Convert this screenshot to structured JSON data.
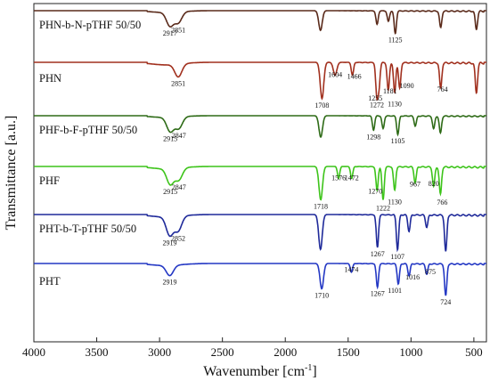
{
  "chart_data": {
    "type": "line",
    "title": "",
    "xlabel": "Wavenumber [cm",
    "xlabel_sup": "-1",
    "xlabel_close": "]",
    "ylabel": "Transmittance [a.u.]",
    "xlim": [
      4000,
      400
    ],
    "x_reversed": true,
    "xticks": [
      4000,
      3500,
      3000,
      2500,
      2000,
      1500,
      1000,
      500
    ],
    "y_ticks_shown": false,
    "grid": false,
    "legend": "none",
    "series": [
      {
        "name": "PHN-b-N-pTHF 50/50",
        "color": "#5a2a1a",
        "peaks": [
          {
            "wavenumber": 2917,
            "depth": 0.45,
            "label": "2917"
          },
          {
            "wavenumber": 2851,
            "depth": 0.35,
            "label": "2851"
          },
          {
            "wavenumber": 1720,
            "depth": 0.65,
            "label": ""
          },
          {
            "wavenumber": 1270,
            "depth": 0.45,
            "label": ""
          },
          {
            "wavenumber": 1180,
            "depth": 0.35,
            "label": ""
          },
          {
            "wavenumber": 1125,
            "depth": 0.75,
            "label": "1125"
          },
          {
            "wavenumber": 764,
            "depth": 0.55,
            "label": ""
          },
          {
            "wavenumber": 480,
            "depth": 0.6,
            "label": ""
          }
        ]
      },
      {
        "name": "PHN",
        "color": "#a1301e",
        "peaks": [
          {
            "wavenumber": 2851,
            "depth": 0.3,
            "label": "2851"
          },
          {
            "wavenumber": 1708,
            "depth": 0.85,
            "label": "1708"
          },
          {
            "wavenumber": 1604,
            "depth": 0.3,
            "label": "1604"
          },
          {
            "wavenumber": 1466,
            "depth": 0.3,
            "label": "1466"
          },
          {
            "wavenumber": 1272,
            "depth": 0.75,
            "label": "1272"
          },
          {
            "wavenumber": 1255,
            "depth": 0.55,
            "label": "1255"
          },
          {
            "wavenumber": 1181,
            "depth": 0.65,
            "label": "1181"
          },
          {
            "wavenumber": 1130,
            "depth": 0.7,
            "label": "1130"
          },
          {
            "wavenumber": 1090,
            "depth": 0.6,
            "label": "1090"
          },
          {
            "wavenumber": 764,
            "depth": 0.6,
            "label": "764"
          },
          {
            "wavenumber": 480,
            "depth": 0.7,
            "label": ""
          }
        ]
      },
      {
        "name": "PHF-b-F-pTHF 50/50",
        "color": "#2e6b17",
        "peaks": [
          {
            "wavenumber": 2915,
            "depth": 0.5,
            "label": "2915"
          },
          {
            "wavenumber": 2847,
            "depth": 0.4,
            "label": "2847"
          },
          {
            "wavenumber": 1718,
            "depth": 0.75,
            "label": ""
          },
          {
            "wavenumber": 1298,
            "depth": 0.5,
            "label": "1298"
          },
          {
            "wavenumber": 1222,
            "depth": 0.45,
            "label": ""
          },
          {
            "wavenumber": 1105,
            "depth": 0.65,
            "label": "1105"
          },
          {
            "wavenumber": 966,
            "depth": 0.35,
            "label": ""
          },
          {
            "wavenumber": 820,
            "depth": 0.45,
            "label": ""
          },
          {
            "wavenumber": 766,
            "depth": 0.6,
            "label": ""
          }
        ]
      },
      {
        "name": "PHF",
        "color": "#3dc41a",
        "peaks": [
          {
            "wavenumber": 2915,
            "depth": 0.4,
            "label": "2915"
          },
          {
            "wavenumber": 2847,
            "depth": 0.3,
            "label": "2847"
          },
          {
            "wavenumber": 1718,
            "depth": 0.85,
            "label": "1718"
          },
          {
            "wavenumber": 1576,
            "depth": 0.3,
            "label": "1576"
          },
          {
            "wavenumber": 1472,
            "depth": 0.3,
            "label": "1472"
          },
          {
            "wavenumber": 1270,
            "depth": 0.6,
            "label": "1270"
          },
          {
            "wavenumber": 1222,
            "depth": 0.85,
            "label": "1222"
          },
          {
            "wavenumber": 1130,
            "depth": 0.6,
            "label": "1130"
          },
          {
            "wavenumber": 967,
            "depth": 0.4,
            "label": "967"
          },
          {
            "wavenumber": 820,
            "depth": 0.5,
            "label": "820"
          },
          {
            "wavenumber": 766,
            "depth": 0.7,
            "label": "766"
          }
        ]
      },
      {
        "name": "PHT-b-T-pTHF 50/50",
        "color": "#1f2a9a",
        "peaks": [
          {
            "wavenumber": 2919,
            "depth": 0.45,
            "label": "2919"
          },
          {
            "wavenumber": 2852,
            "depth": 0.35,
            "label": "2852"
          },
          {
            "wavenumber": 1720,
            "depth": 0.85,
            "label": ""
          },
          {
            "wavenumber": 1267,
            "depth": 0.8,
            "label": "1267"
          },
          {
            "wavenumber": 1107,
            "depth": 0.85,
            "label": "1107"
          },
          {
            "wavenumber": 1016,
            "depth": 0.4,
            "label": ""
          },
          {
            "wavenumber": 875,
            "depth": 0.3,
            "label": ""
          },
          {
            "wavenumber": 724,
            "depth": 0.9,
            "label": ""
          }
        ]
      },
      {
        "name": "PHT",
        "color": "#2438c4",
        "peaks": [
          {
            "wavenumber": 2919,
            "depth": 0.3,
            "label": "2919"
          },
          {
            "wavenumber": 1710,
            "depth": 0.75,
            "label": "1710"
          },
          {
            "wavenumber": 1474,
            "depth": 0.25,
            "label": "1474"
          },
          {
            "wavenumber": 1267,
            "depth": 0.7,
            "label": "1267"
          },
          {
            "wavenumber": 1101,
            "depth": 0.6,
            "label": "1101"
          },
          {
            "wavenumber": 1016,
            "depth": 0.35,
            "label": "1016"
          },
          {
            "wavenumber": 875,
            "depth": 0.3,
            "label": "875"
          },
          {
            "wavenumber": 724,
            "depth": 0.95,
            "label": "724"
          }
        ]
      }
    ]
  }
}
